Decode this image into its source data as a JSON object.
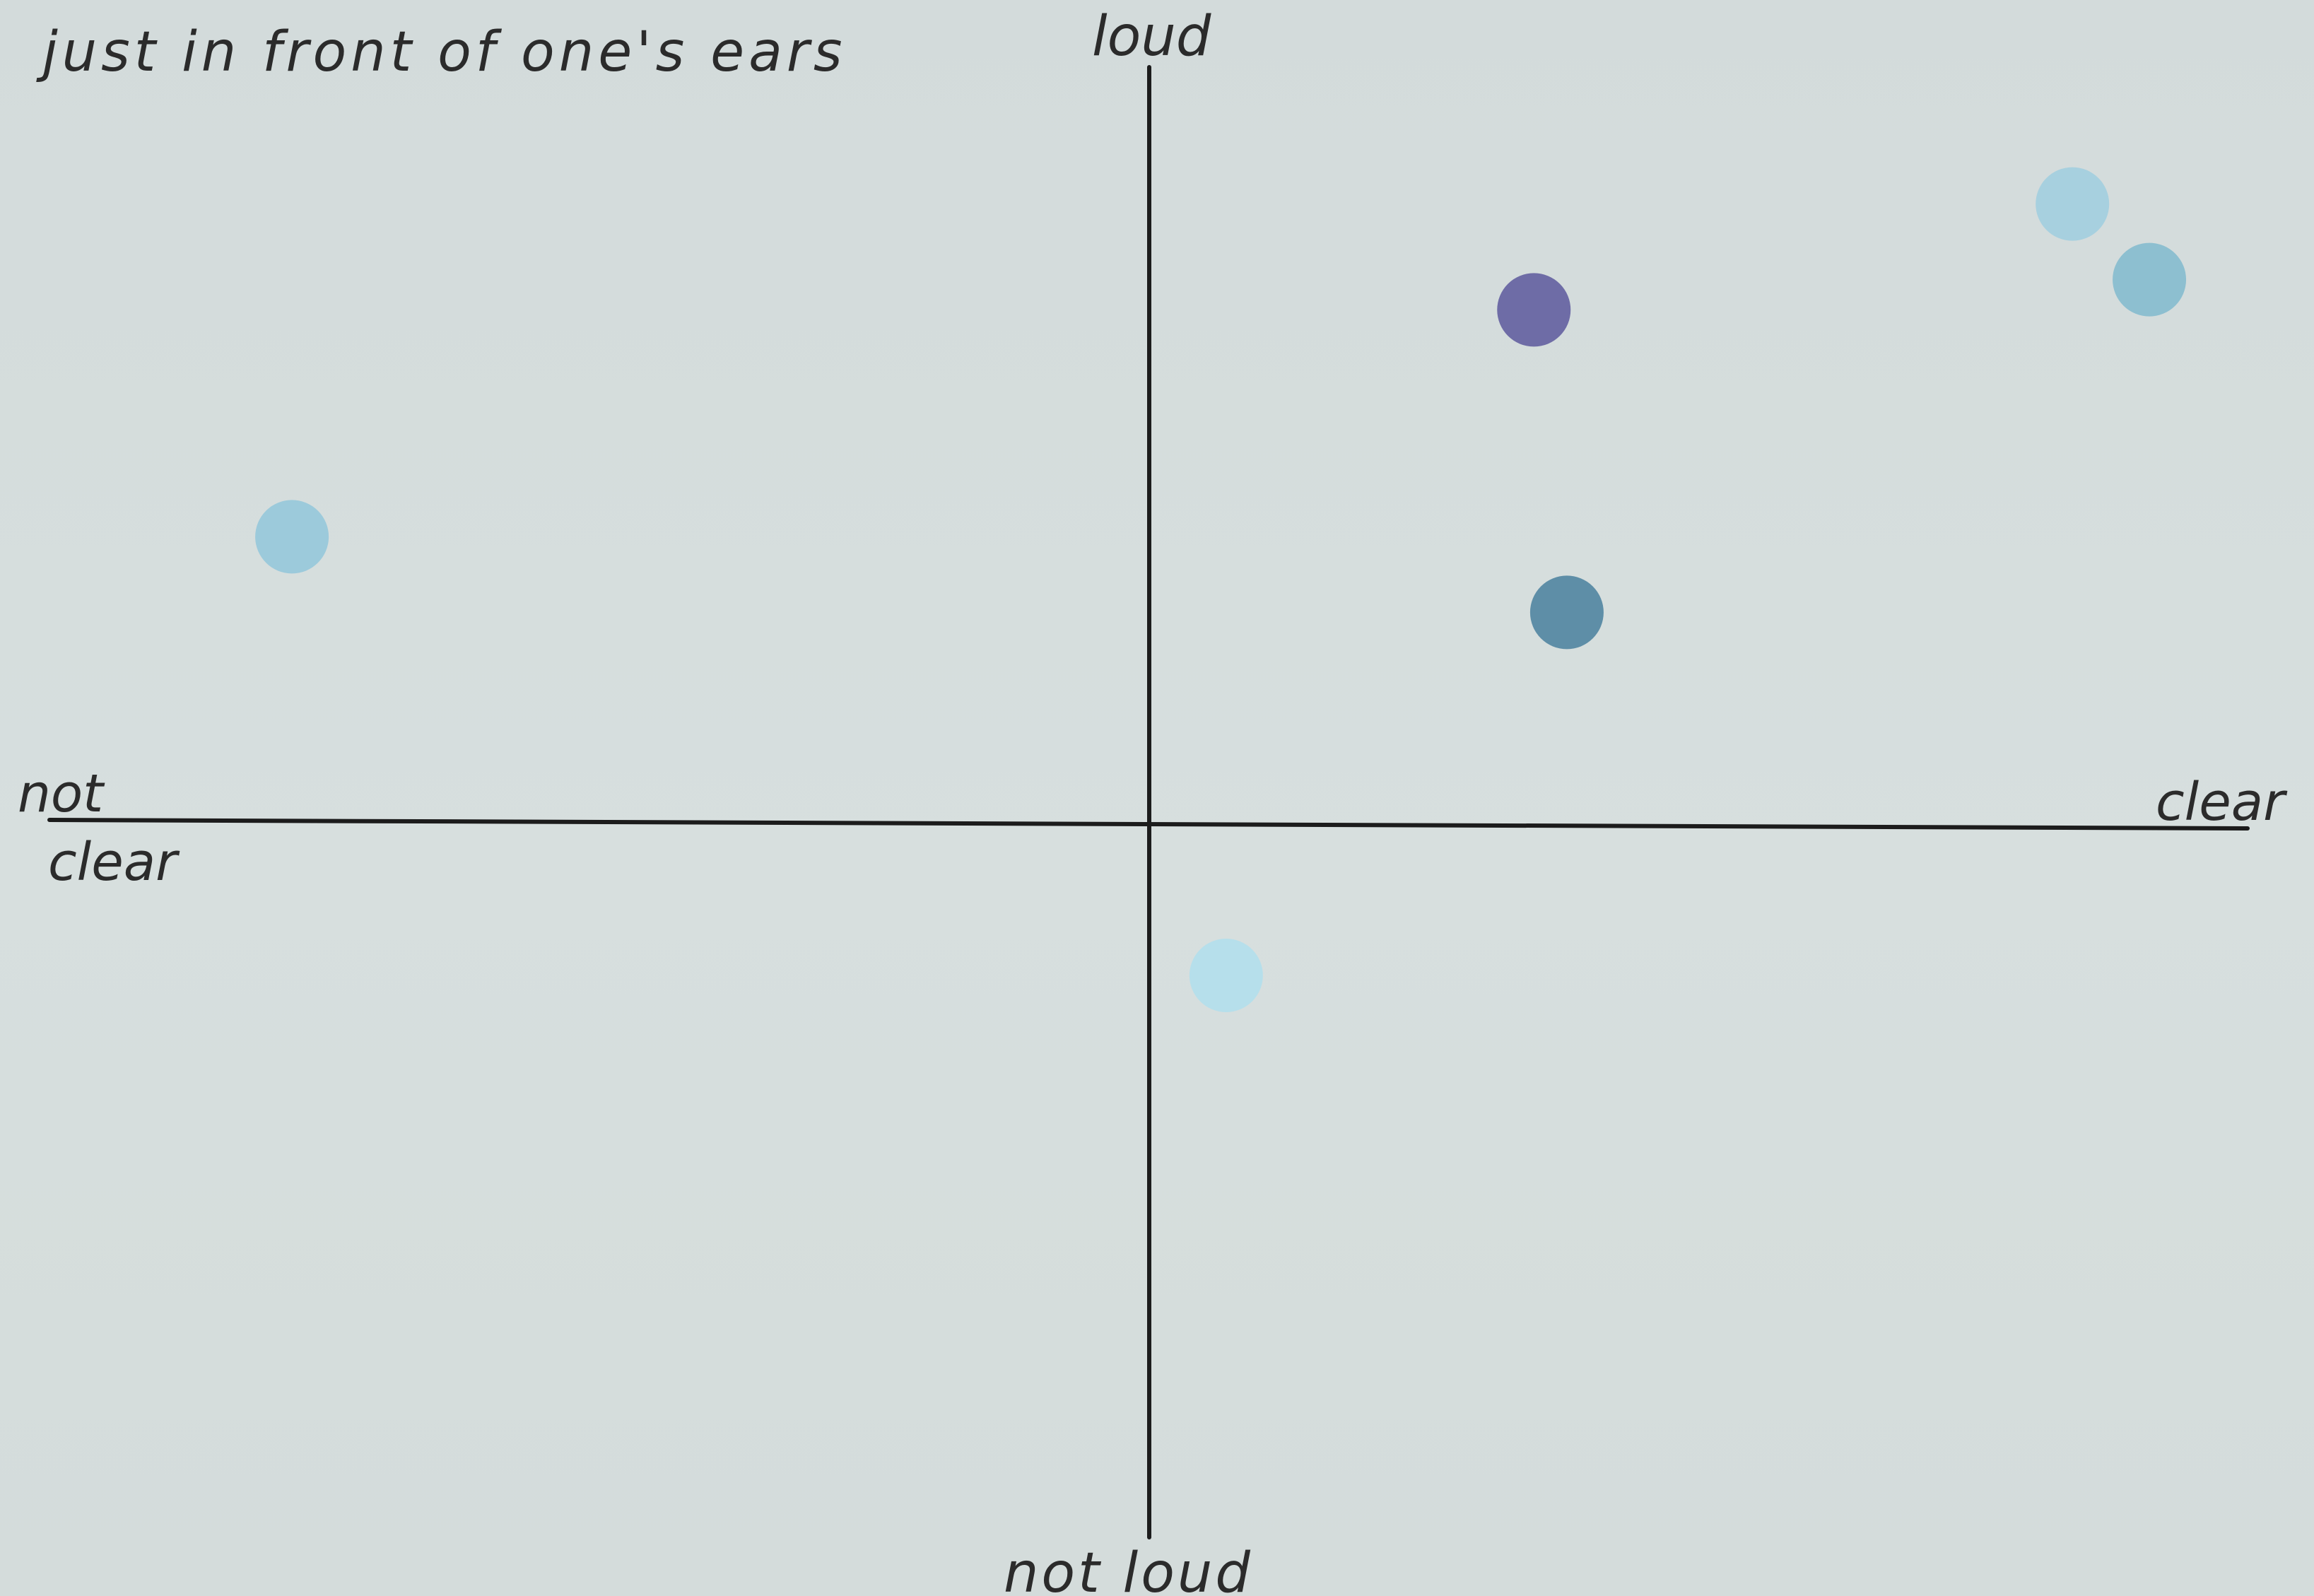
{
  "title": "just in front of one's ears",
  "chart_data": {
    "type": "scatter",
    "title": "just in front of one's ears",
    "x_axis": {
      "negative_label_line1": "not",
      "negative_label_line2": "clear",
      "positive_label": "clear",
      "range": [
        -10,
        10
      ]
    },
    "y_axis": {
      "positive_label": "loud",
      "negative_label": "not loud",
      "range": [
        -10,
        10
      ]
    },
    "grid": false,
    "points": [
      {
        "x": 8.4,
        "y": 8.2,
        "color": "#a7d0df"
      },
      {
        "x": 9.1,
        "y": 7.2,
        "color": "#8dbfd0"
      },
      {
        "x": 3.5,
        "y": 6.8,
        "color": "#6e6ca6"
      },
      {
        "x": 3.8,
        "y": 2.8,
        "color": "#5e8ea7"
      },
      {
        "x": -7.8,
        "y": 3.8,
        "color": "#9ccadb"
      },
      {
        "x": 0.7,
        "y": -2.0,
        "color": "#b6dfeb"
      }
    ]
  }
}
